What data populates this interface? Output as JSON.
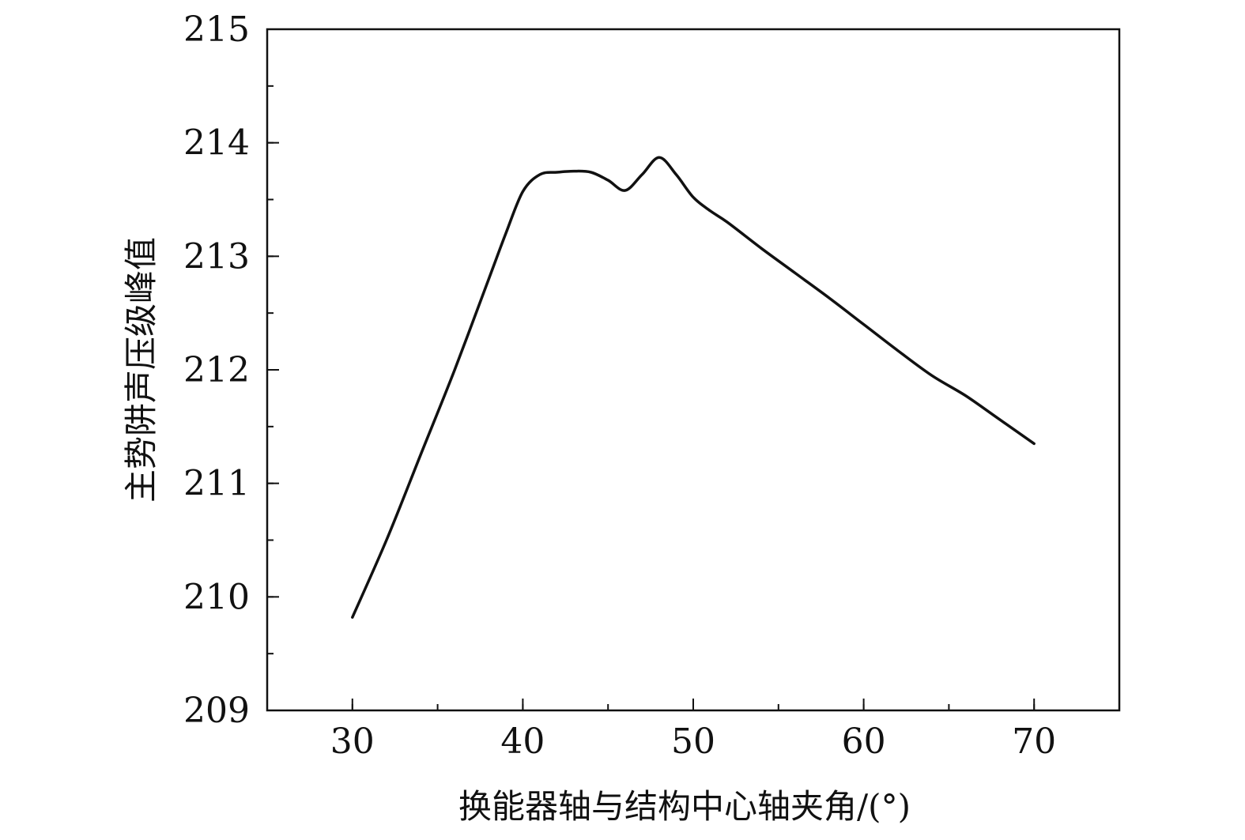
{
  "chart_data": {
    "type": "line",
    "title": "",
    "xlabel": "换能器轴与结构中心轴夹角/(°)",
    "ylabel": "主势阱声压级峰值",
    "xlim": [
      25,
      75
    ],
    "ylim": [
      209,
      215
    ],
    "xticks": [
      30,
      40,
      50,
      60,
      70
    ],
    "yticks": [
      209,
      210,
      211,
      212,
      213,
      214,
      215
    ],
    "x_minor_step": 5,
    "y_minor_step": 0.5,
    "grid": false,
    "legend": "none",
    "line_color": "#111111",
    "series": [
      {
        "x": [
          30,
          32,
          34,
          36,
          38,
          39,
          40,
          41,
          42,
          43,
          44,
          45,
          46,
          47,
          48,
          49,
          50,
          51,
          52,
          54,
          56,
          58,
          60,
          62,
          64,
          66,
          68,
          70
        ],
        "values": [
          209.82,
          210.5,
          211.25,
          212.0,
          212.8,
          213.2,
          213.57,
          213.72,
          213.74,
          213.75,
          213.74,
          213.67,
          213.58,
          213.72,
          213.87,
          213.72,
          213.52,
          213.4,
          213.3,
          213.07,
          212.85,
          212.63,
          212.4,
          212.17,
          211.95,
          211.77,
          211.56,
          211.35
        ]
      }
    ]
  }
}
